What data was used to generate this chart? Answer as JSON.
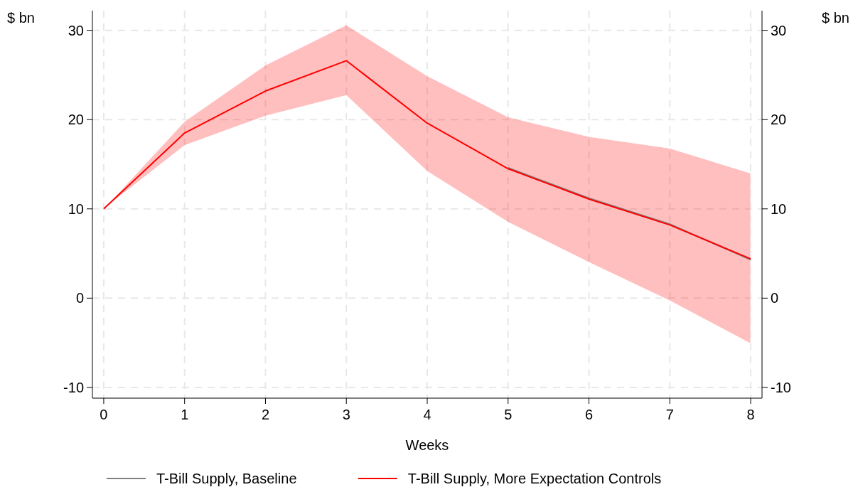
{
  "chart_data": {
    "type": "line",
    "xlabel": "Weeks",
    "ylabel": "$ bn",
    "y2label": "$ bn",
    "x": [
      0,
      1,
      2,
      3,
      4,
      5,
      6,
      7,
      8
    ],
    "xlim": [
      -0.14,
      8.14
    ],
    "xticks": [
      0,
      1,
      2,
      3,
      4,
      5,
      6,
      7,
      8
    ],
    "ylim": [
      -11.2,
      32.2
    ],
    "yticks": [
      -10,
      0,
      10,
      20,
      30
    ],
    "y2lim": [
      -11.2,
      32.2
    ],
    "y2ticks": [
      -10,
      0,
      10,
      20,
      30
    ],
    "grid": true,
    "legend": "bottom",
    "line_style": "solid",
    "marker": "none",
    "series": [
      {
        "name": "T-Bill Supply, Baseline",
        "color": "#808080",
        "values": [
          null,
          null,
          null,
          null,
          null,
          14.6,
          11.2,
          8.3,
          4.3
        ]
      },
      {
        "name": "T-Bill Supply, More Expectation Controls",
        "color": "#ff0000",
        "values": [
          10,
          18.5,
          23.2,
          26.6,
          19.6,
          14.5,
          11.1,
          8.2,
          4.4
        ],
        "lower": [
          10,
          17.1,
          20.4,
          22.7,
          14.2,
          8.5,
          4.0,
          -0.3,
          -5.1
        ],
        "upper": [
          10,
          19.8,
          26.1,
          30.6,
          24.9,
          20.3,
          18.1,
          16.8,
          14.0
        ]
      }
    ]
  }
}
